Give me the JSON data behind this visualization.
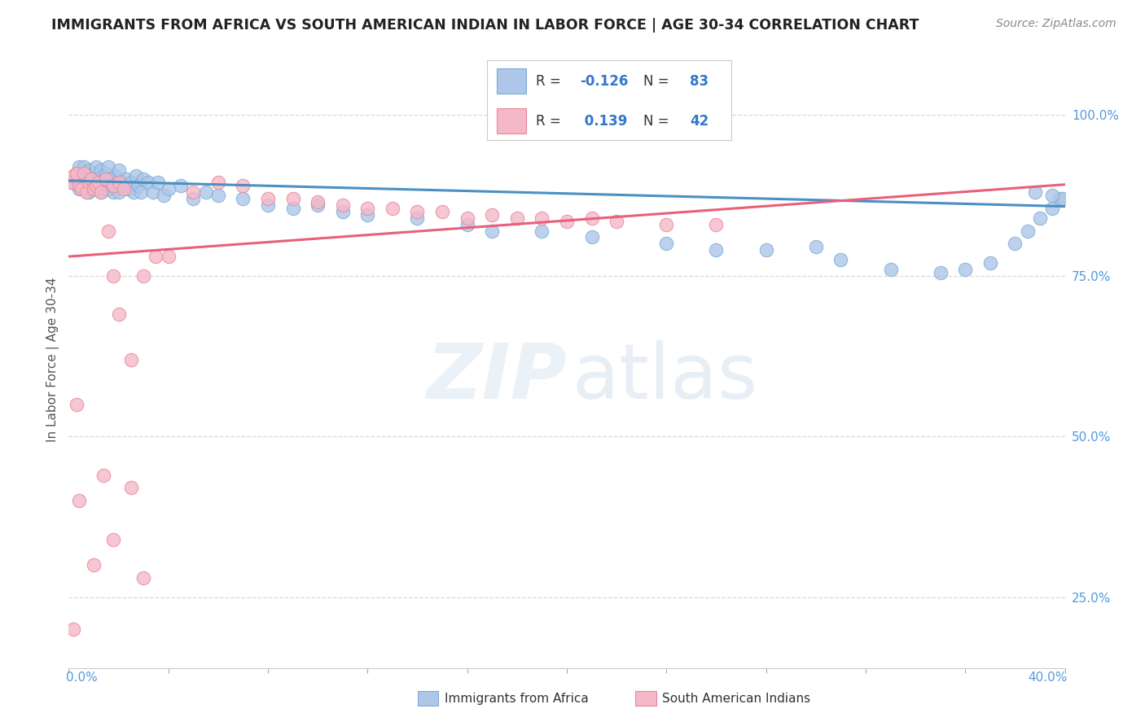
{
  "title": "IMMIGRANTS FROM AFRICA VS SOUTH AMERICAN INDIAN IN LABOR FORCE | AGE 30-34 CORRELATION CHART",
  "source": "Source: ZipAtlas.com",
  "ylabel": "In Labor Force | Age 30-34",
  "xlim": [
    0.0,
    0.4
  ],
  "ylim": [
    0.14,
    1.1
  ],
  "blue_R": -0.126,
  "blue_N": 83,
  "pink_R": 0.139,
  "pink_N": 42,
  "blue_color": "#aec6e8",
  "blue_edge": "#7aadd4",
  "pink_color": "#f4b8c8",
  "pink_edge": "#e8879a",
  "blue_line_color": "#4a90c4",
  "pink_line_color": "#e8607a",
  "background_color": "#ffffff",
  "grid_color": "#d8d8d8",
  "ytick_vals": [
    0.25,
    0.5,
    0.75,
    1.0
  ],
  "ytick_labels": [
    "25.0%",
    "50.0%",
    "75.0%",
    "100.0%"
  ],
  "blue_scatter_x": [
    0.002,
    0.003,
    0.004,
    0.004,
    0.005,
    0.005,
    0.006,
    0.006,
    0.007,
    0.007,
    0.008,
    0.008,
    0.009,
    0.009,
    0.01,
    0.01,
    0.011,
    0.011,
    0.012,
    0.012,
    0.013,
    0.013,
    0.014,
    0.014,
    0.015,
    0.015,
    0.016,
    0.016,
    0.017,
    0.017,
    0.018,
    0.018,
    0.019,
    0.019,
    0.02,
    0.02,
    0.021,
    0.022,
    0.023,
    0.024,
    0.025,
    0.026,
    0.027,
    0.028,
    0.029,
    0.03,
    0.032,
    0.034,
    0.036,
    0.038,
    0.04,
    0.045,
    0.05,
    0.055,
    0.06,
    0.07,
    0.08,
    0.09,
    0.1,
    0.11,
    0.12,
    0.14,
    0.16,
    0.17,
    0.19,
    0.21,
    0.24,
    0.26,
    0.28,
    0.3,
    0.31,
    0.33,
    0.35,
    0.36,
    0.37,
    0.38,
    0.385,
    0.39,
    0.395,
    0.398,
    0.399,
    0.395,
    0.388
  ],
  "blue_scatter_y": [
    0.895,
    0.91,
    0.885,
    0.92,
    0.89,
    0.905,
    0.885,
    0.92,
    0.89,
    0.9,
    0.88,
    0.915,
    0.895,
    0.885,
    0.9,
    0.91,
    0.885,
    0.92,
    0.89,
    0.9,
    0.88,
    0.915,
    0.895,
    0.885,
    0.9,
    0.91,
    0.885,
    0.92,
    0.89,
    0.9,
    0.88,
    0.895,
    0.905,
    0.89,
    0.88,
    0.915,
    0.895,
    0.89,
    0.9,
    0.885,
    0.895,
    0.88,
    0.905,
    0.89,
    0.88,
    0.9,
    0.895,
    0.88,
    0.895,
    0.875,
    0.885,
    0.89,
    0.87,
    0.88,
    0.875,
    0.87,
    0.86,
    0.855,
    0.86,
    0.85,
    0.845,
    0.84,
    0.83,
    0.82,
    0.82,
    0.81,
    0.8,
    0.79,
    0.79,
    0.795,
    0.775,
    0.76,
    0.755,
    0.76,
    0.77,
    0.8,
    0.82,
    0.84,
    0.855,
    0.87,
    0.87,
    0.875,
    0.88
  ],
  "pink_scatter_x": [
    0.001,
    0.002,
    0.003,
    0.004,
    0.005,
    0.006,
    0.007,
    0.008,
    0.009,
    0.01,
    0.011,
    0.012,
    0.013,
    0.015,
    0.016,
    0.018,
    0.02,
    0.022,
    0.03,
    0.035,
    0.05,
    0.06,
    0.07,
    0.09,
    0.1,
    0.12,
    0.14,
    0.16,
    0.18,
    0.2,
    0.025,
    0.04,
    0.08,
    0.11,
    0.13,
    0.15,
    0.17,
    0.19,
    0.21,
    0.22,
    0.24,
    0.26
  ],
  "pink_scatter_y": [
    0.895,
    0.905,
    0.91,
    0.89,
    0.885,
    0.91,
    0.88,
    0.895,
    0.9,
    0.885,
    0.89,
    0.895,
    0.88,
    0.9,
    0.82,
    0.89,
    0.895,
    0.885,
    0.75,
    0.78,
    0.88,
    0.895,
    0.89,
    0.87,
    0.865,
    0.855,
    0.85,
    0.84,
    0.84,
    0.835,
    0.62,
    0.78,
    0.87,
    0.86,
    0.855,
    0.85,
    0.845,
    0.84,
    0.84,
    0.835,
    0.83,
    0.83
  ],
  "pink_extra_x": [
    0.002,
    0.003,
    0.004,
    0.01,
    0.014,
    0.018,
    0.025,
    0.03,
    0.018,
    0.02
  ],
  "pink_extra_y": [
    0.2,
    0.55,
    0.4,
    0.3,
    0.44,
    0.34,
    0.42,
    0.28,
    0.75,
    0.69
  ]
}
